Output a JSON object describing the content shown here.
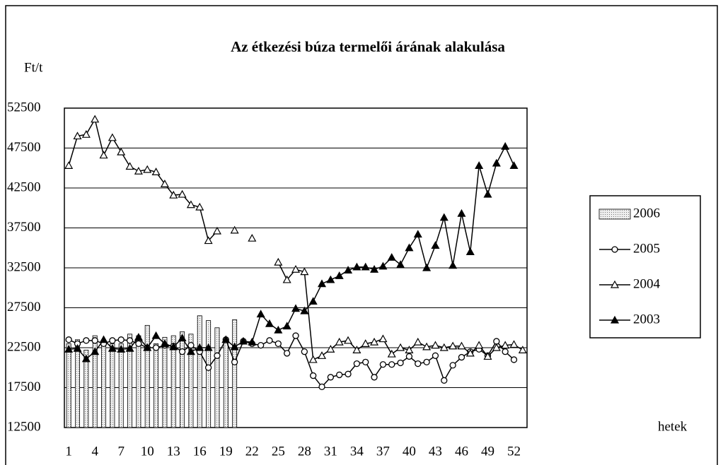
{
  "chart_data": {
    "type": "combo",
    "title": "Az étkezési búza termelői árának alakulása",
    "y_label": "Ft/t",
    "x_label": "hetek",
    "x": [
      1,
      2,
      3,
      4,
      5,
      6,
      7,
      8,
      9,
      10,
      11,
      12,
      13,
      14,
      15,
      16,
      17,
      18,
      19,
      20,
      21,
      22,
      23,
      24,
      25,
      26,
      27,
      28,
      29,
      30,
      31,
      32,
      33,
      34,
      35,
      36,
      37,
      38,
      39,
      40,
      41,
      42,
      43,
      44,
      45,
      46,
      47,
      48,
      49,
      50,
      51,
      52,
      53
    ],
    "xlim": [
      0.5,
      53.5
    ],
    "xticks": [
      1,
      4,
      7,
      10,
      13,
      16,
      19,
      22,
      25,
      28,
      31,
      34,
      37,
      40,
      43,
      46,
      49,
      52
    ],
    "ylim": [
      12500,
      52500
    ],
    "yticks": [
      12500,
      17500,
      22500,
      27500,
      32500,
      37500,
      42500,
      47500,
      52500
    ],
    "grid": true,
    "series": [
      {
        "name": "2006",
        "kind": "bar",
        "color": "#d9d9d9",
        "values": [
          23000,
          23500,
          22200,
          24000,
          23500,
          23000,
          23000,
          24200,
          24000,
          25300,
          23000,
          23800,
          24000,
          24500,
          24200,
          26500,
          25900,
          25000,
          23500,
          26000,
          null,
          null,
          null,
          null,
          null,
          null,
          null,
          null,
          null,
          null,
          null,
          null,
          null,
          null,
          null,
          null,
          null,
          null,
          null,
          null,
          null,
          null,
          null,
          null,
          null,
          null,
          null,
          null,
          null,
          null,
          null,
          null,
          null
        ]
      },
      {
        "name": "2005",
        "kind": "line",
        "marker": "circle",
        "color": "#000000",
        "values": [
          23500,
          23000,
          23400,
          23400,
          23000,
          23400,
          23500,
          23400,
          23000,
          22500,
          22500,
          22800,
          22700,
          22000,
          22800,
          22000,
          20000,
          21500,
          23500,
          20700,
          23300,
          23000,
          22800,
          23400,
          23000,
          21800,
          24000,
          22000,
          19000,
          17600,
          18800,
          19100,
          19200,
          20500,
          20700,
          18800,
          20400,
          20400,
          20600,
          21400,
          20500,
          20700,
          21500,
          18400,
          20300,
          21300,
          22000,
          22300,
          21500,
          23300,
          22000,
          21000,
          null
        ]
      },
      {
        "name": "2004",
        "kind": "line",
        "marker": "triangle-open",
        "color": "#000000",
        "values": [
          45300,
          49000,
          49200,
          51100,
          46600,
          48800,
          47000,
          45200,
          44600,
          44800,
          44500,
          43000,
          41600,
          41700,
          40400,
          40100,
          35900,
          37100,
          null,
          37200,
          null,
          36200,
          null,
          null,
          33200,
          31000,
          32300,
          32000,
          21000,
          21500,
          22300,
          23200,
          23400,
          22200,
          23000,
          23200,
          23600,
          21700,
          22500,
          22200,
          23200,
          22600,
          22800,
          22500,
          22700,
          22700,
          21800,
          22800,
          21400,
          22500,
          22800,
          22900,
          22200
        ]
      },
      {
        "name": "2003",
        "kind": "line",
        "marker": "triangle-filled",
        "color": "#000000",
        "values": [
          22300,
          22400,
          21100,
          22000,
          23500,
          22400,
          22300,
          22400,
          23800,
          22500,
          24000,
          23000,
          22600,
          23700,
          22000,
          22500,
          22500,
          null,
          23500,
          22600,
          23300,
          23200,
          26700,
          25500,
          24700,
          25200,
          27400,
          27100,
          28300,
          30500,
          31000,
          31500,
          32200,
          32600,
          32600,
          32300,
          32700,
          33800,
          32900,
          35000,
          36700,
          32500,
          35300,
          38800,
          32800,
          39300,
          34500,
          45300,
          41700,
          45600,
          47700,
          45300,
          null
        ]
      }
    ]
  }
}
